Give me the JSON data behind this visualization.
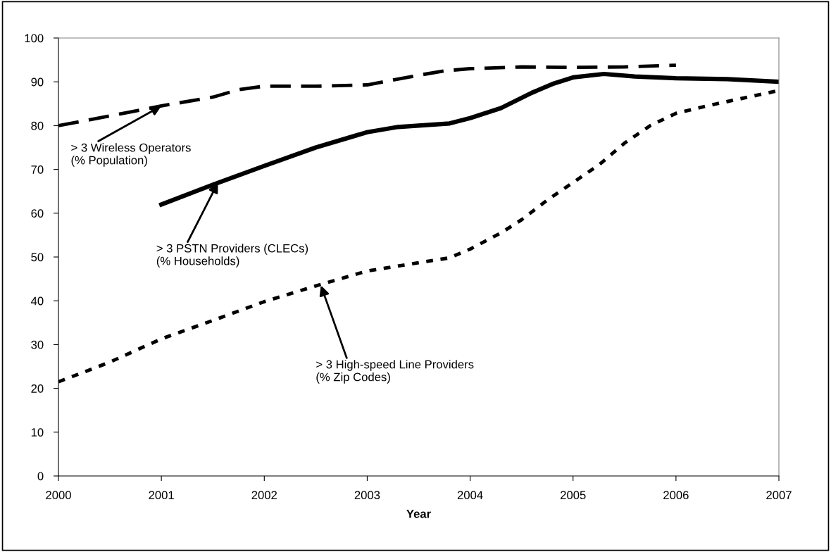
{
  "chart_data": {
    "type": "line",
    "xlabel": "Year",
    "xlim": [
      2000,
      2007
    ],
    "xticks": [
      2000,
      2001,
      2002,
      2003,
      2004,
      2005,
      2006,
      2007
    ],
    "ylim": [
      0,
      100
    ],
    "yticks": [
      0,
      10,
      20,
      30,
      40,
      50,
      60,
      70,
      80,
      90,
      100
    ],
    "grid": false,
    "legend": false,
    "marker": "none",
    "series": [
      {
        "color": "#000000",
        "line_style": "dashed",
        "x": [
          2000,
          2000.5,
          2001,
          2001.5,
          2001.75,
          2002,
          2002.5,
          2003,
          2003.5,
          2003.75,
          2004,
          2004.5,
          2005,
          2005.5,
          2006
        ],
        "values": [
          80,
          82.2,
          84.5,
          86.5,
          88.2,
          89,
          89,
          89.3,
          91.5,
          92.5,
          93,
          93.4,
          93.3,
          93.4,
          93.8
        ]
      },
      {
        "color": "#000000",
        "line_style": "solid",
        "x": [
          2001,
          2001.5,
          2002,
          2002.5,
          2003,
          2003.3,
          2003.8,
          2004,
          2004.3,
          2004.6,
          2004.8,
          2005,
          2005.3,
          2005.6,
          2006,
          2006.5,
          2007
        ],
        "values": [
          62,
          66.5,
          70.8,
          75,
          78.5,
          79.7,
          80.5,
          81.7,
          84,
          87.5,
          89.5,
          91,
          91.8,
          91.2,
          90.8,
          90.6,
          90
        ]
      },
      {
        "color": "#000000",
        "line_style": "dotted",
        "x": [
          2000,
          2000.5,
          2001,
          2001.5,
          2002,
          2002.5,
          2003,
          2003.5,
          2003.8,
          2004,
          2004.3,
          2004.5,
          2004.75,
          2005,
          2005.25,
          2005.5,
          2005.75,
          2006,
          2006.3,
          2006.6,
          2007
        ],
        "values": [
          21.5,
          26,
          31.3,
          35.5,
          39.8,
          43.4,
          46.8,
          48.7,
          49.8,
          51.8,
          55.5,
          58.5,
          63,
          67,
          71,
          76,
          80,
          82.8,
          84.5,
          86,
          88
        ]
      }
    ],
    "annotations": [
      {
        "text": "> 3 Wireless Operators\n(% Population)",
        "x": 2001,
        "y": 84.5
      },
      {
        "text": "> 3 PSTN Providers (CLECs)\n(% Households)",
        "x": 2001.55,
        "y": 67
      },
      {
        "text": "> 3 High-speed Line Providers\n(% Zip Codes)",
        "x": 2002.55,
        "y": 43.5
      }
    ]
  }
}
